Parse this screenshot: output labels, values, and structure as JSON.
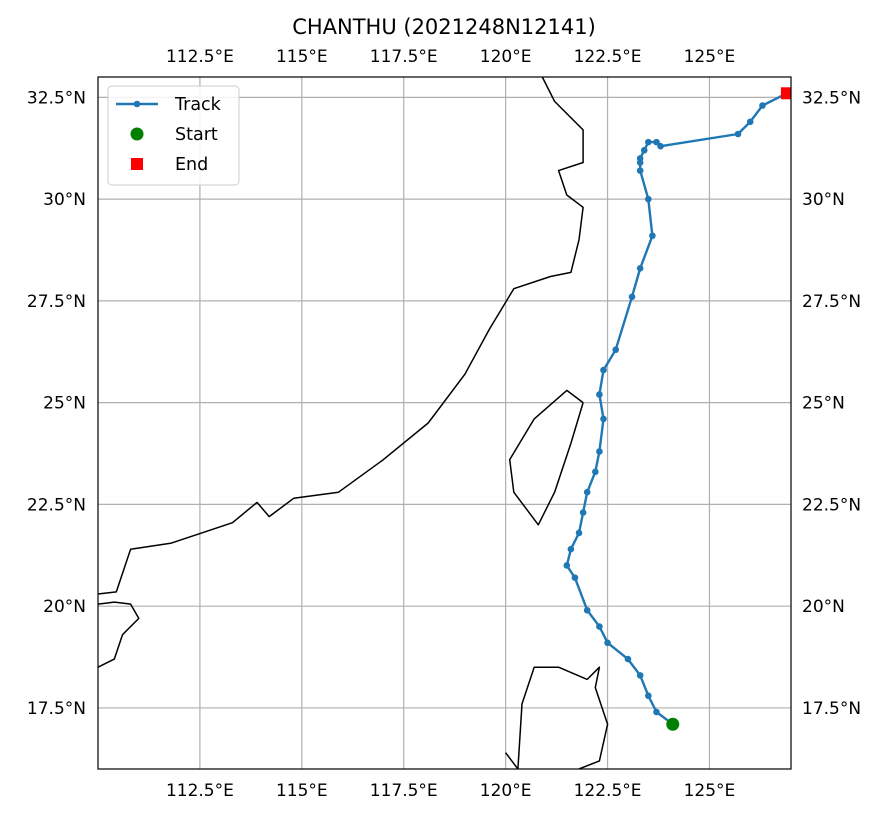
{
  "title": "CHANTHU (2021248N12141)",
  "colors": {
    "track": "#1f77b4",
    "start": "#008000",
    "end": "#ff0000",
    "coast": "#000000",
    "grid": "#b0b0b0"
  },
  "chart_data": {
    "type": "map-track",
    "xlim": [
      110.0,
      127.0
    ],
    "ylim": [
      16.0,
      33.0
    ],
    "lon_ticks": [
      {
        "value": 112.5,
        "label": "112.5°E"
      },
      {
        "value": 115.0,
        "label": "115°E"
      },
      {
        "value": 117.5,
        "label": "117.5°E"
      },
      {
        "value": 120.0,
        "label": "120°E"
      },
      {
        "value": 122.5,
        "label": "122.5°E"
      },
      {
        "value": 125.0,
        "label": "125°E"
      }
    ],
    "lat_ticks": [
      {
        "value": 17.5,
        "label": "17.5°N"
      },
      {
        "value": 20.0,
        "label": "20°N"
      },
      {
        "value": 22.5,
        "label": "22.5°N"
      },
      {
        "value": 25.0,
        "label": "25°N"
      },
      {
        "value": 27.5,
        "label": "27.5°N"
      },
      {
        "value": 30.0,
        "label": "30°N"
      },
      {
        "value": 32.5,
        "label": "32.5°N"
      }
    ],
    "grid": true,
    "legend": {
      "placement": "top-left",
      "entries": [
        {
          "label": "Track",
          "marker": "line-dot"
        },
        {
          "label": "Start",
          "marker": "circle"
        },
        {
          "label": "End",
          "marker": "square"
        }
      ]
    },
    "track": [
      [
        124.1,
        17.1
      ],
      [
        123.7,
        17.4
      ],
      [
        123.5,
        17.8
      ],
      [
        123.3,
        18.3
      ],
      [
        123.0,
        18.7
      ],
      [
        122.5,
        19.1
      ],
      [
        122.3,
        19.5
      ],
      [
        122.0,
        19.9
      ],
      [
        121.7,
        20.7
      ],
      [
        121.5,
        21.0
      ],
      [
        121.6,
        21.4
      ],
      [
        121.8,
        21.8
      ],
      [
        121.9,
        22.3
      ],
      [
        122.0,
        22.8
      ],
      [
        122.2,
        23.3
      ],
      [
        122.3,
        23.8
      ],
      [
        122.4,
        24.6
      ],
      [
        122.3,
        25.2
      ],
      [
        122.4,
        25.8
      ],
      [
        122.7,
        26.3
      ],
      [
        123.1,
        27.6
      ],
      [
        123.3,
        28.3
      ],
      [
        123.6,
        29.1
      ],
      [
        123.5,
        30.0
      ],
      [
        123.3,
        30.7
      ],
      [
        123.3,
        30.9
      ],
      [
        123.3,
        31.0
      ],
      [
        123.4,
        31.2
      ],
      [
        123.5,
        31.4
      ],
      [
        123.7,
        31.4
      ],
      [
        123.8,
        31.3
      ],
      [
        125.7,
        31.6
      ],
      [
        126.0,
        31.9
      ],
      [
        126.3,
        32.3
      ],
      [
        126.9,
        32.6
      ]
    ],
    "start": [
      124.1,
      17.1
    ],
    "end": [
      126.9,
      32.6
    ],
    "coastlines": [
      [
        [
          110.0,
          20.3
        ],
        [
          110.45,
          20.35
        ],
        [
          110.8,
          21.4
        ],
        [
          111.8,
          21.55
        ],
        [
          113.3,
          22.05
        ],
        [
          113.9,
          22.55
        ],
        [
          114.2,
          22.2
        ],
        [
          114.8,
          22.65
        ],
        [
          115.9,
          22.8
        ],
        [
          117.0,
          23.6
        ],
        [
          118.1,
          24.5
        ],
        [
          119.0,
          25.7
        ],
        [
          119.6,
          26.8
        ],
        [
          120.2,
          27.8
        ],
        [
          121.1,
          28.1
        ],
        [
          121.6,
          28.2
        ],
        [
          121.8,
          29.0
        ],
        [
          121.9,
          29.8
        ],
        [
          121.5,
          30.1
        ],
        [
          121.3,
          30.7
        ],
        [
          121.9,
          30.9
        ],
        [
          121.9,
          31.7
        ],
        [
          121.2,
          32.4
        ],
        [
          120.9,
          33.0
        ]
      ],
      [
        [
          110.0,
          20.05
        ],
        [
          110.4,
          20.1
        ],
        [
          110.8,
          20.05
        ],
        [
          111.0,
          19.7
        ],
        [
          110.6,
          19.3
        ],
        [
          110.4,
          18.7
        ],
        [
          110.0,
          18.5
        ]
      ],
      [
        [
          121.9,
          25.0
        ],
        [
          121.5,
          25.3
        ],
        [
          120.7,
          24.6
        ],
        [
          120.1,
          23.6
        ],
        [
          120.2,
          22.8
        ],
        [
          120.8,
          22.0
        ],
        [
          121.2,
          22.8
        ],
        [
          121.6,
          24.0
        ],
        [
          121.9,
          25.0
        ]
      ],
      [
        [
          120.0,
          16.4
        ],
        [
          120.3,
          16.0
        ]
      ],
      [
        [
          120.3,
          16.0
        ],
        [
          120.4,
          17.6
        ],
        [
          120.7,
          18.5
        ],
        [
          121.3,
          18.5
        ],
        [
          122.0,
          18.2
        ],
        [
          122.3,
          18.5
        ],
        [
          122.2,
          18.0
        ],
        [
          122.5,
          17.1
        ],
        [
          122.3,
          16.2
        ],
        [
          121.8,
          16.0
        ]
      ]
    ]
  }
}
